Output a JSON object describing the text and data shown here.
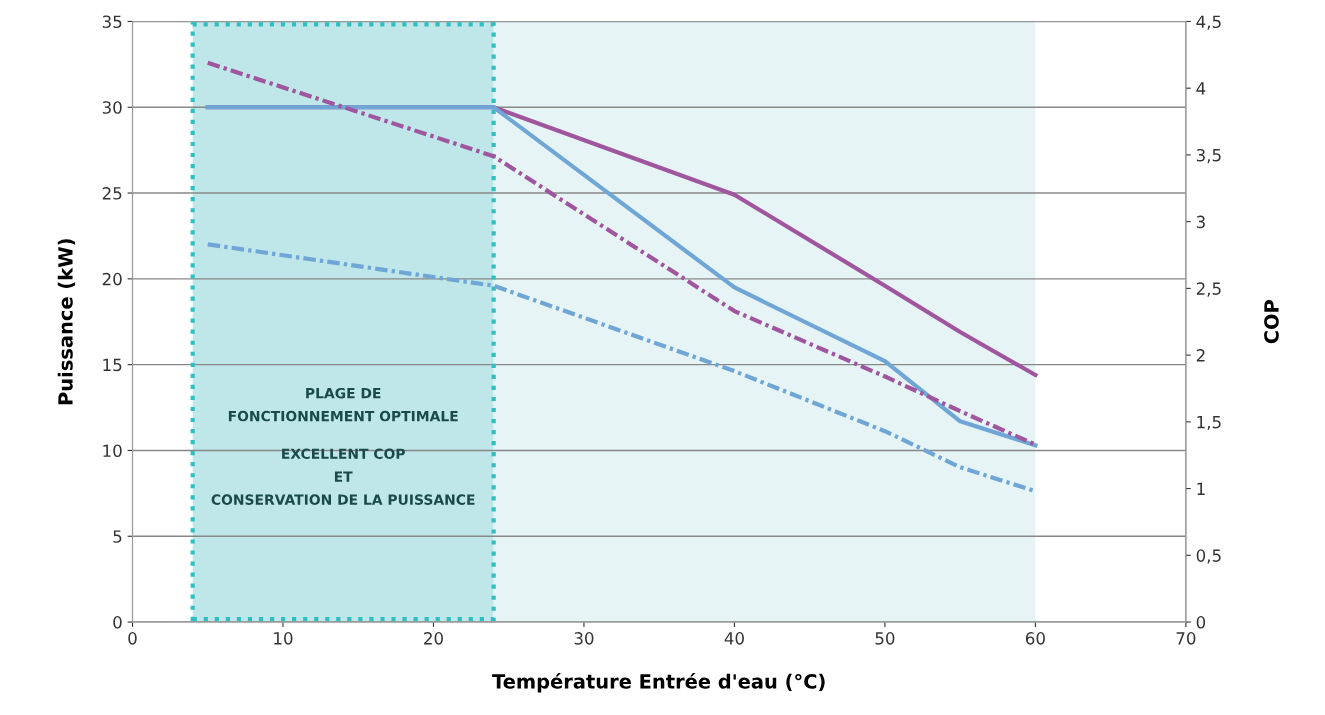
{
  "chart_data": {
    "type": "line",
    "xlabel": "Température Entrée d'eau (°C)",
    "ylabel": "Puissance (kW)",
    "y2label": "COP",
    "xlim": [
      0,
      70
    ],
    "xticks": [
      0,
      10,
      20,
      30,
      40,
      50,
      60,
      70
    ],
    "ylim": [
      0,
      35
    ],
    "yticks": [
      0,
      5,
      10,
      15,
      20,
      25,
      30,
      35
    ],
    "y2lim": [
      0,
      4.5
    ],
    "y2ticks": [
      {
        "value": 0,
        "label": "0"
      },
      {
        "value": 0.5,
        "label": "0,5"
      },
      {
        "value": 1,
        "label": "1"
      },
      {
        "value": 1.5,
        "label": "1,5"
      },
      {
        "value": 2,
        "label": "2"
      },
      {
        "value": 2.5,
        "label": "2,5"
      },
      {
        "value": 3,
        "label": "3"
      },
      {
        "value": 3.5,
        "label": "3,5"
      },
      {
        "value": 4,
        "label": "4"
      },
      {
        "value": 4.5,
        "label": "4,5"
      }
    ],
    "grid": "y",
    "marker": "none",
    "x": [
      5,
      24,
      40,
      50,
      55,
      60
    ],
    "series": [
      {
        "color": "#a0559f",
        "values": [
          30,
          30,
          24.9,
          19.6,
          16.9,
          14.4
        ],
        "line_style": "solid"
      },
      {
        "color": "#6fa6d6",
        "values": [
          30,
          30,
          19.5,
          15.2,
          11.7,
          10.3
        ],
        "line_style": "solid"
      },
      {
        "color": "#a0559f",
        "values": [
          4.19,
          3.49,
          2.33,
          1.84,
          1.58,
          1.33
        ],
        "line_style": "dashdot",
        "axis": "y2"
      },
      {
        "color": "#6fa6d6",
        "values": [
          2.83,
          2.52,
          1.88,
          1.43,
          1.16,
          0.98
        ],
        "line_style": "dashdot",
        "axis": "y2"
      }
    ],
    "bands": [
      {
        "axis": "x",
        "from": 4,
        "to": 24,
        "color": "#bfe6e8",
        "label": "PLAGE DE\nFONCTIONNEMENT OPTIMALE"
      },
      {
        "axis": "x",
        "from": 24,
        "to": 60,
        "color": "#e6f4f5"
      }
    ],
    "annotations": [
      "EXCELLENT COP\nET\nCONSERVATION DE LA PUISSANCE"
    ]
  }
}
